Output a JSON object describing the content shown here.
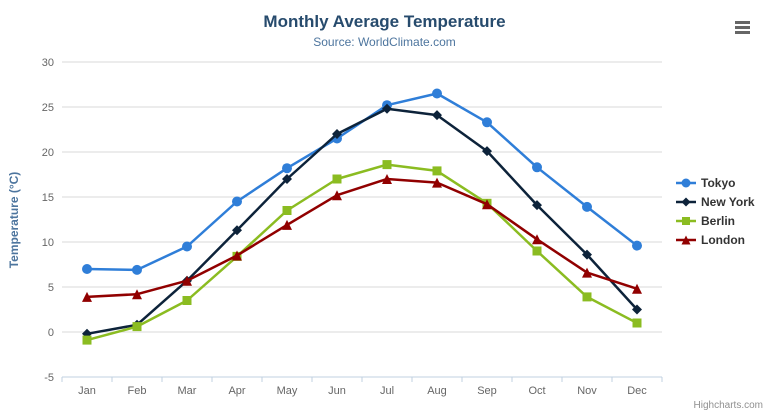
{
  "chart_data": {
    "type": "line",
    "title": "Monthly Average Temperature",
    "subtitle": "Source: WorldClimate.com",
    "xlabel": "",
    "ylabel": "Temperature (°C)",
    "categories": [
      "Jan",
      "Feb",
      "Mar",
      "Apr",
      "May",
      "Jun",
      "Jul",
      "Aug",
      "Sep",
      "Oct",
      "Nov",
      "Dec"
    ],
    "ylim": [
      -5,
      30
    ],
    "ytick_step": 5,
    "grid": true,
    "legend_position": "right",
    "series": [
      {
        "name": "Tokyo",
        "color": "#2f7ed8",
        "marker": "circle",
        "values": [
          7.0,
          6.9,
          9.5,
          14.5,
          18.2,
          21.5,
          25.2,
          26.5,
          23.3,
          18.3,
          13.9,
          9.6
        ]
      },
      {
        "name": "New York",
        "color": "#0d233a",
        "marker": "diamond",
        "values": [
          -0.2,
          0.8,
          5.7,
          11.3,
          17.0,
          22.0,
          24.8,
          24.1,
          20.1,
          14.1,
          8.6,
          2.5
        ]
      },
      {
        "name": "Berlin",
        "color": "#8bbc21",
        "marker": "square",
        "values": [
          -0.9,
          0.6,
          3.5,
          8.4,
          13.5,
          17.0,
          18.6,
          17.9,
          14.3,
          9.0,
          3.9,
          1.0
        ]
      },
      {
        "name": "London",
        "color": "#910000",
        "marker": "triangle",
        "values": [
          3.9,
          4.2,
          5.7,
          8.5,
          11.9,
          15.2,
          17.0,
          16.6,
          14.2,
          10.3,
          6.6,
          4.8
        ]
      }
    ],
    "colors": {
      "title": "#274b6d",
      "subtitle": "#4d759e",
      "axis_label": "#666666",
      "gridline": "#d8d8d8",
      "axis_line": "#c0d0e0"
    }
  },
  "credits": {
    "text": "Highcharts.com"
  },
  "menu": {
    "name": "chart-context-menu"
  }
}
